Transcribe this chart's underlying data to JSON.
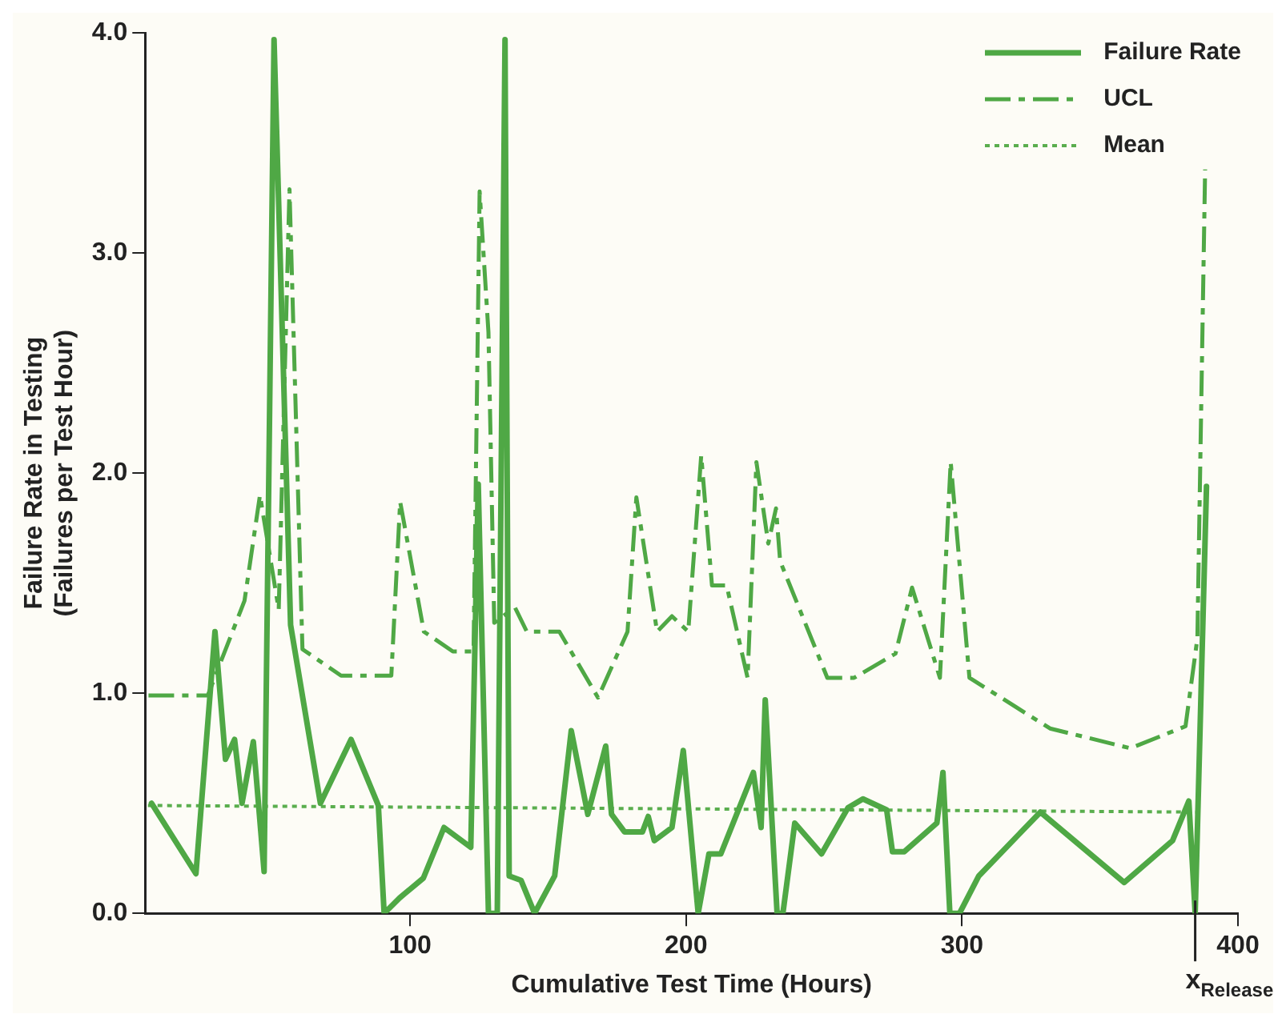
{
  "chart_data": {
    "type": "line",
    "xlabel": "Cumulative Test Time (Hours)",
    "ylabel": "Failure Rate in Testing\n(Failures per Test Hour)",
    "xlim": [
      4,
      400
    ],
    "xticks": [
      100,
      200,
      300,
      400
    ],
    "ylim": [
      0,
      4.0
    ],
    "yticks": [
      {
        "value": 0,
        "label": "0.0"
      },
      {
        "value": 1,
        "label": "1.0"
      },
      {
        "value": 2,
        "label": "2.0"
      },
      {
        "value": 3,
        "label": "3.0"
      },
      {
        "value": 4,
        "label": "4.0"
      }
    ],
    "legend": "top right",
    "marker": "none",
    "series": [
      {
        "name": "Failure Rate",
        "color": "#4fa845",
        "line_style": "solid",
        "x": [
          6.3,
          22.4,
          29.3,
          33.1,
          36.4,
          39.1,
          43.2,
          47.1,
          50.7,
          56.7,
          67.5,
          78.6,
          88.5,
          90.6,
          96.2,
          104.8,
          112.3,
          122,
          124.7,
          128.4,
          131.6,
          134.4,
          135.9,
          140.2,
          145.1,
          152.4,
          158.4,
          164.4,
          170.9,
          173,
          177.7,
          184.2,
          186.3,
          188.5,
          194.9,
          199,
          204.4,
          208.3,
          212.6,
          224.4,
          227.2,
          228.7,
          233,
          235.1,
          239.4,
          249.1,
          258.7,
          264.1,
          272.7,
          274.8,
          279.1,
          290.9,
          293.1,
          295.6,
          299.1,
          306.1,
          328.4,
          358.8,
          376.3,
          382.2,
          384.5,
          388.6
        ],
        "values": [
          0.5,
          0.18,
          1.28,
          0.7,
          0.79,
          0.5,
          0.78,
          0.19,
          3.97,
          1.31,
          0.5,
          0.79,
          0.49,
          0,
          0.07,
          0.16,
          0.39,
          0.3,
          1.95,
          0,
          0,
          3.97,
          0.17,
          0.15,
          0,
          0.17,
          0.83,
          0.45,
          0.76,
          0.45,
          0.37,
          0.37,
          0.44,
          0.33,
          0.39,
          0.74,
          0,
          0.27,
          0.27,
          0.64,
          0.39,
          0.97,
          0,
          0,
          0.41,
          0.27,
          0.48,
          0.52,
          0.47,
          0.28,
          0.28,
          0.41,
          0.64,
          0,
          0,
          0.17,
          0.46,
          0.14,
          0.33,
          0.51,
          0,
          1.94
        ]
      },
      {
        "name": "UCL",
        "color": "#4fa845",
        "line_style": "dashdot",
        "x": [
          5.2,
          26.7,
          31,
          40,
          45.6,
          52.4,
          56.3,
          61,
          75,
          93.2,
          96.4,
          105,
          115.5,
          123,
          125.2,
          128.4,
          130.5,
          138,
          142.3,
          154.1,
          168.1,
          178.8,
          182,
          189.5,
          194.9,
          200.8,
          205.5,
          209.4,
          214.7,
          222.3,
          225.5,
          229.8,
          232.6,
          234.1,
          251.2,
          260.9,
          275.9,
          281.9,
          292,
          295.9,
          302.7,
          331.9,
          361,
          381,
          385.3,
          388.1
        ],
        "values": [
          0.99,
          0.99,
          1.13,
          1.42,
          1.9,
          1.38,
          3.29,
          1.2,
          1.08,
          1.08,
          1.87,
          1.28,
          1.19,
          1.19,
          3.28,
          2.64,
          1.32,
          1.39,
          1.28,
          1.28,
          0.98,
          1.28,
          1.89,
          1.28,
          1.35,
          1.28,
          2.08,
          1.49,
          1.49,
          1.07,
          2.05,
          1.68,
          1.84,
          1.6,
          1.07,
          1.07,
          1.18,
          1.48,
          1.07,
          2.05,
          1.07,
          0.84,
          0.75,
          0.85,
          1.25,
          3.38
        ]
      },
      {
        "name": "Mean",
        "color": "#5aae4e",
        "line_style": "dotted",
        "x": [
          5,
          385
        ],
        "values": [
          0.49,
          0.46
        ]
      }
    ],
    "annotations": [
      {
        "text": "x$_{Release}$",
        "x": 384.5,
        "y": 0
      }
    ]
  }
}
